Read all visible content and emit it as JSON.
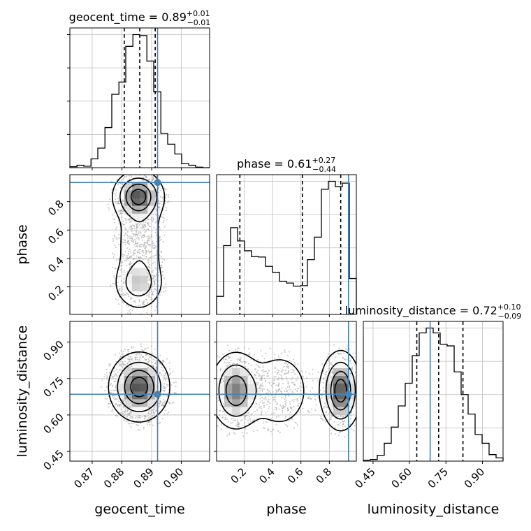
{
  "chart_data": {
    "type": "corner",
    "truth": {
      "geocent_time": 0.892,
      "phase": 0.935,
      "luminosity_distance": 0.685
    },
    "parameters": [
      {
        "name": "geocent_time",
        "axis_label": "geocent_time",
        "title": {
          "prefix": "geocent_time = ",
          "median": "0.89",
          "plus": "+0.01",
          "minus": "−0.01"
        },
        "range": [
          0.8625,
          0.9095
        ],
        "ticks": [
          0.87,
          0.88,
          0.89,
          0.9
        ],
        "tick_labels": [
          "0.87",
          "0.88",
          "0.89",
          "0.90"
        ],
        "quantiles": [
          0.8808,
          0.886,
          0.8912
        ],
        "hist": {
          "edges": [
            0.8625,
            0.8649,
            0.8672,
            0.8696,
            0.8719,
            0.8743,
            0.8766,
            0.879,
            0.8813,
            0.8837,
            0.886,
            0.8884,
            0.8907,
            0.8931,
            0.8954,
            0.8978,
            0.9001,
            0.9025,
            0.9048,
            0.9072,
            0.9095
          ],
          "counts": [
            2,
            5,
            3,
            18,
            40,
            82,
            150,
            175,
            248,
            272,
            270,
            218,
            155,
            70,
            48,
            28,
            8,
            5,
            1,
            0
          ]
        }
      },
      {
        "name": "phase",
        "axis_label": "phase",
        "title": {
          "prefix": "phase = ",
          "median": "0.61",
          "plus": "+0.27",
          "minus": "−0.44"
        },
        "range": [
          0.006,
          0.99
        ],
        "ticks": [
          0.2,
          0.4,
          0.6,
          0.8
        ],
        "tick_labels": [
          "0.2",
          "0.4",
          "0.6",
          "0.8"
        ],
        "quantiles": [
          0.17,
          0.61,
          0.88
        ],
        "hist": {
          "edges": [
            0.006,
            0.0552,
            0.1044,
            0.1536,
            0.2028,
            0.252,
            0.3012,
            0.3504,
            0.3996,
            0.4488,
            0.498,
            0.5472,
            0.5964,
            0.6456,
            0.6948,
            0.744,
            0.7932,
            0.8424,
            0.8916,
            0.9408,
            0.99
          ],
          "counts": [
            118,
            450,
            567,
            480,
            416,
            378,
            375,
            314,
            275,
            217,
            205,
            185,
            188,
            358,
            505,
            818,
            870,
            835,
            858,
            235
          ]
        }
      },
      {
        "name": "luminosity_distance",
        "axis_label": "luminosity_distance",
        "title": {
          "prefix": "luminosity_distance = ",
          "median": "0.72",
          "plus": "+0.10",
          "minus": "−0.09"
        },
        "range": [
          0.41,
          0.985
        ],
        "ticks": [
          0.45,
          0.6,
          0.75,
          0.9
        ],
        "tick_labels": [
          "0.45",
          "0.60",
          "0.75",
          "0.90"
        ],
        "quantiles": [
          0.63,
          0.72,
          0.82
        ],
        "hist": {
          "edges": [
            0.41,
            0.4388,
            0.4675,
            0.4963,
            0.525,
            0.5538,
            0.5825,
            0.6113,
            0.64,
            0.6688,
            0.6975,
            0.7263,
            0.755,
            0.7838,
            0.8125,
            0.8413,
            0.87,
            0.8988,
            0.9275,
            0.9563,
            0.985
          ],
          "counts": [
            3,
            5,
            18,
            55,
            105,
            170,
            240,
            325,
            395,
            410,
            395,
            360,
            355,
            275,
            205,
            145,
            82,
            55,
            20,
            10
          ]
        }
      }
    ],
    "blobs_2d": {
      "phase_vs_geocent_time": [
        {
          "x": 0.8855,
          "y": 0.84,
          "sx": 0.0042,
          "sy": 0.085,
          "w": 0.55
        },
        {
          "x": 0.8855,
          "y": 0.22,
          "sx": 0.0042,
          "sy": 0.085,
          "w": 0.25
        },
        {
          "x": 0.886,
          "y": 0.5,
          "sx": 0.0045,
          "sy": 0.24,
          "w": 0.2
        }
      ],
      "luminosity_distance_vs_geocent_time": [
        {
          "x": 0.8858,
          "y": 0.715,
          "sx": 0.005,
          "sy": 0.07,
          "w": 1.0
        }
      ],
      "luminosity_distance_vs_phase": [
        {
          "x": 0.14,
          "y": 0.7,
          "sx": 0.09,
          "sy": 0.08,
          "w": 0.38
        },
        {
          "x": 0.88,
          "y": 0.7,
          "sx": 0.07,
          "sy": 0.08,
          "w": 0.47
        },
        {
          "x": 0.45,
          "y": 0.7,
          "sx": 0.12,
          "sy": 0.09,
          "w": 0.15
        }
      ]
    },
    "colors": {
      "truth": "#4682b4",
      "line": "#000000",
      "grid": "#bdbdbd",
      "scatter": "#9e9e9e"
    },
    "grid": true
  }
}
